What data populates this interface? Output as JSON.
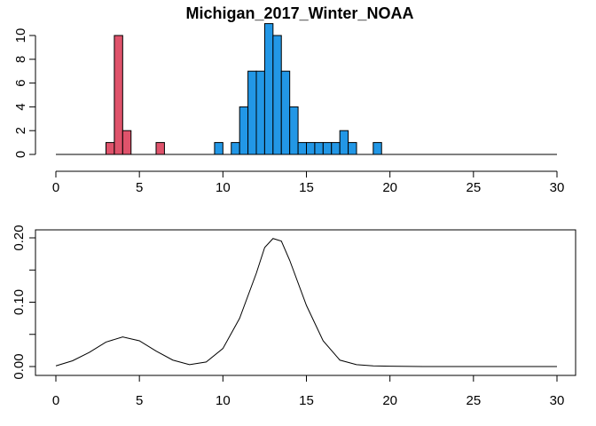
{
  "chart_data": [
    {
      "type": "histogram",
      "title": "Michigan_2017_Winter_NOAA",
      "xlabel": "",
      "ylabel": "",
      "xlim": [
        0,
        30
      ],
      "ylim": [
        0,
        10
      ],
      "x_ticks": [
        "0",
        "5",
        "10",
        "15",
        "20",
        "25",
        "30"
      ],
      "y_ticks": [
        "0",
        "2",
        "4",
        "6",
        "8",
        "10"
      ],
      "bin_width": 0.5,
      "grid": false,
      "series": [
        {
          "color": "#DF536B",
          "bins": [
            {
              "x0": 3.0,
              "count": 1
            },
            {
              "x0": 3.5,
              "count": 10
            },
            {
              "x0": 4.0,
              "count": 2
            },
            {
              "x0": 6.0,
              "count": 1
            }
          ]
        },
        {
          "color": "#2297E6",
          "bins": [
            {
              "x0": 9.5,
              "count": 1
            },
            {
              "x0": 10.5,
              "count": 1
            },
            {
              "x0": 11.0,
              "count": 4
            },
            {
              "x0": 11.5,
              "count": 7
            },
            {
              "x0": 12.0,
              "count": 7
            },
            {
              "x0": 12.5,
              "count": 11
            },
            {
              "x0": 13.0,
              "count": 10
            },
            {
              "x0": 13.5,
              "count": 7
            },
            {
              "x0": 14.0,
              "count": 4
            },
            {
              "x0": 14.5,
              "count": 1
            },
            {
              "x0": 15.0,
              "count": 1
            },
            {
              "x0": 15.5,
              "count": 1
            },
            {
              "x0": 16.0,
              "count": 1
            },
            {
              "x0": 16.5,
              "count": 1
            },
            {
              "x0": 17.0,
              "count": 2
            },
            {
              "x0": 17.5,
              "count": 1
            },
            {
              "x0": 19.0,
              "count": 1
            }
          ]
        }
      ]
    },
    {
      "type": "line",
      "title": "",
      "xlabel": "",
      "ylabel": "",
      "xlim": [
        0,
        30
      ],
      "ylim": [
        0,
        0.2
      ],
      "x_ticks": [
        "0",
        "5",
        "10",
        "15",
        "20",
        "25",
        "30"
      ],
      "y_ticks": [
        "0.00",
        "0.10",
        "0.20"
      ],
      "grid": false,
      "series": [
        {
          "color": "#000000",
          "x": [
            0,
            1,
            2,
            3,
            4,
            5,
            6,
            7,
            8,
            9,
            10,
            11,
            12,
            12.5,
            13,
            13.5,
            14,
            15,
            16,
            17,
            18,
            19,
            20,
            22,
            25,
            30
          ],
          "y": [
            0.001,
            0.009,
            0.022,
            0.038,
            0.046,
            0.04,
            0.024,
            0.01,
            0.003,
            0.007,
            0.028,
            0.075,
            0.145,
            0.185,
            0.199,
            0.195,
            0.165,
            0.095,
            0.04,
            0.01,
            0.003,
            0.001,
            0.0005,
            0.0,
            0.0,
            0.0
          ]
        }
      ]
    }
  ]
}
